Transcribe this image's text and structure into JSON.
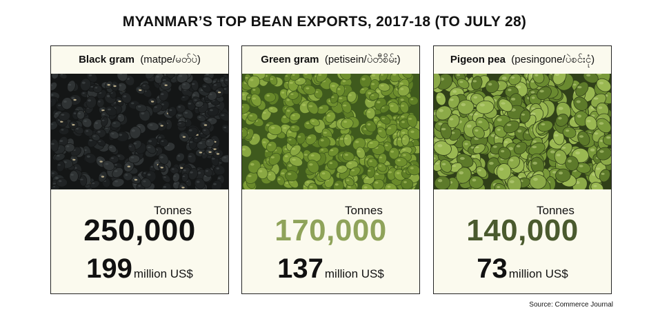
{
  "title": "MYANMAR’S TOP BEAN EXPORTS, 2017-18 (TO JULY 28)",
  "cards": [
    {
      "name": "Black gram",
      "local": "(matpe/မတ်ပဲ)",
      "unit_label": "Tonnes",
      "tonnes": "250,000",
      "usd_value": "199",
      "usd_unit": "million US$",
      "value_color": "#111111",
      "photo_icon": "black-gram-beans-image"
    },
    {
      "name": "Green gram",
      "local": "(petisein/ပဲတီစိမ်း)",
      "unit_label": "Tonnes",
      "tonnes": "170,000",
      "usd_value": "137",
      "usd_unit": "million US$",
      "value_color": "#8fa35a",
      "photo_icon": "green-gram-beans-image"
    },
    {
      "name": "Pigeon pea",
      "local": "(pesingone/ပဲစင်းငုံ)",
      "unit_label": "Tonnes",
      "tonnes": "140,000",
      "usd_value": "73",
      "usd_unit": "million US$",
      "value_color": "#4a5a2e",
      "photo_icon": "pigeon-pea-beans-image"
    }
  ],
  "source": "Source: Commerce Journal"
}
